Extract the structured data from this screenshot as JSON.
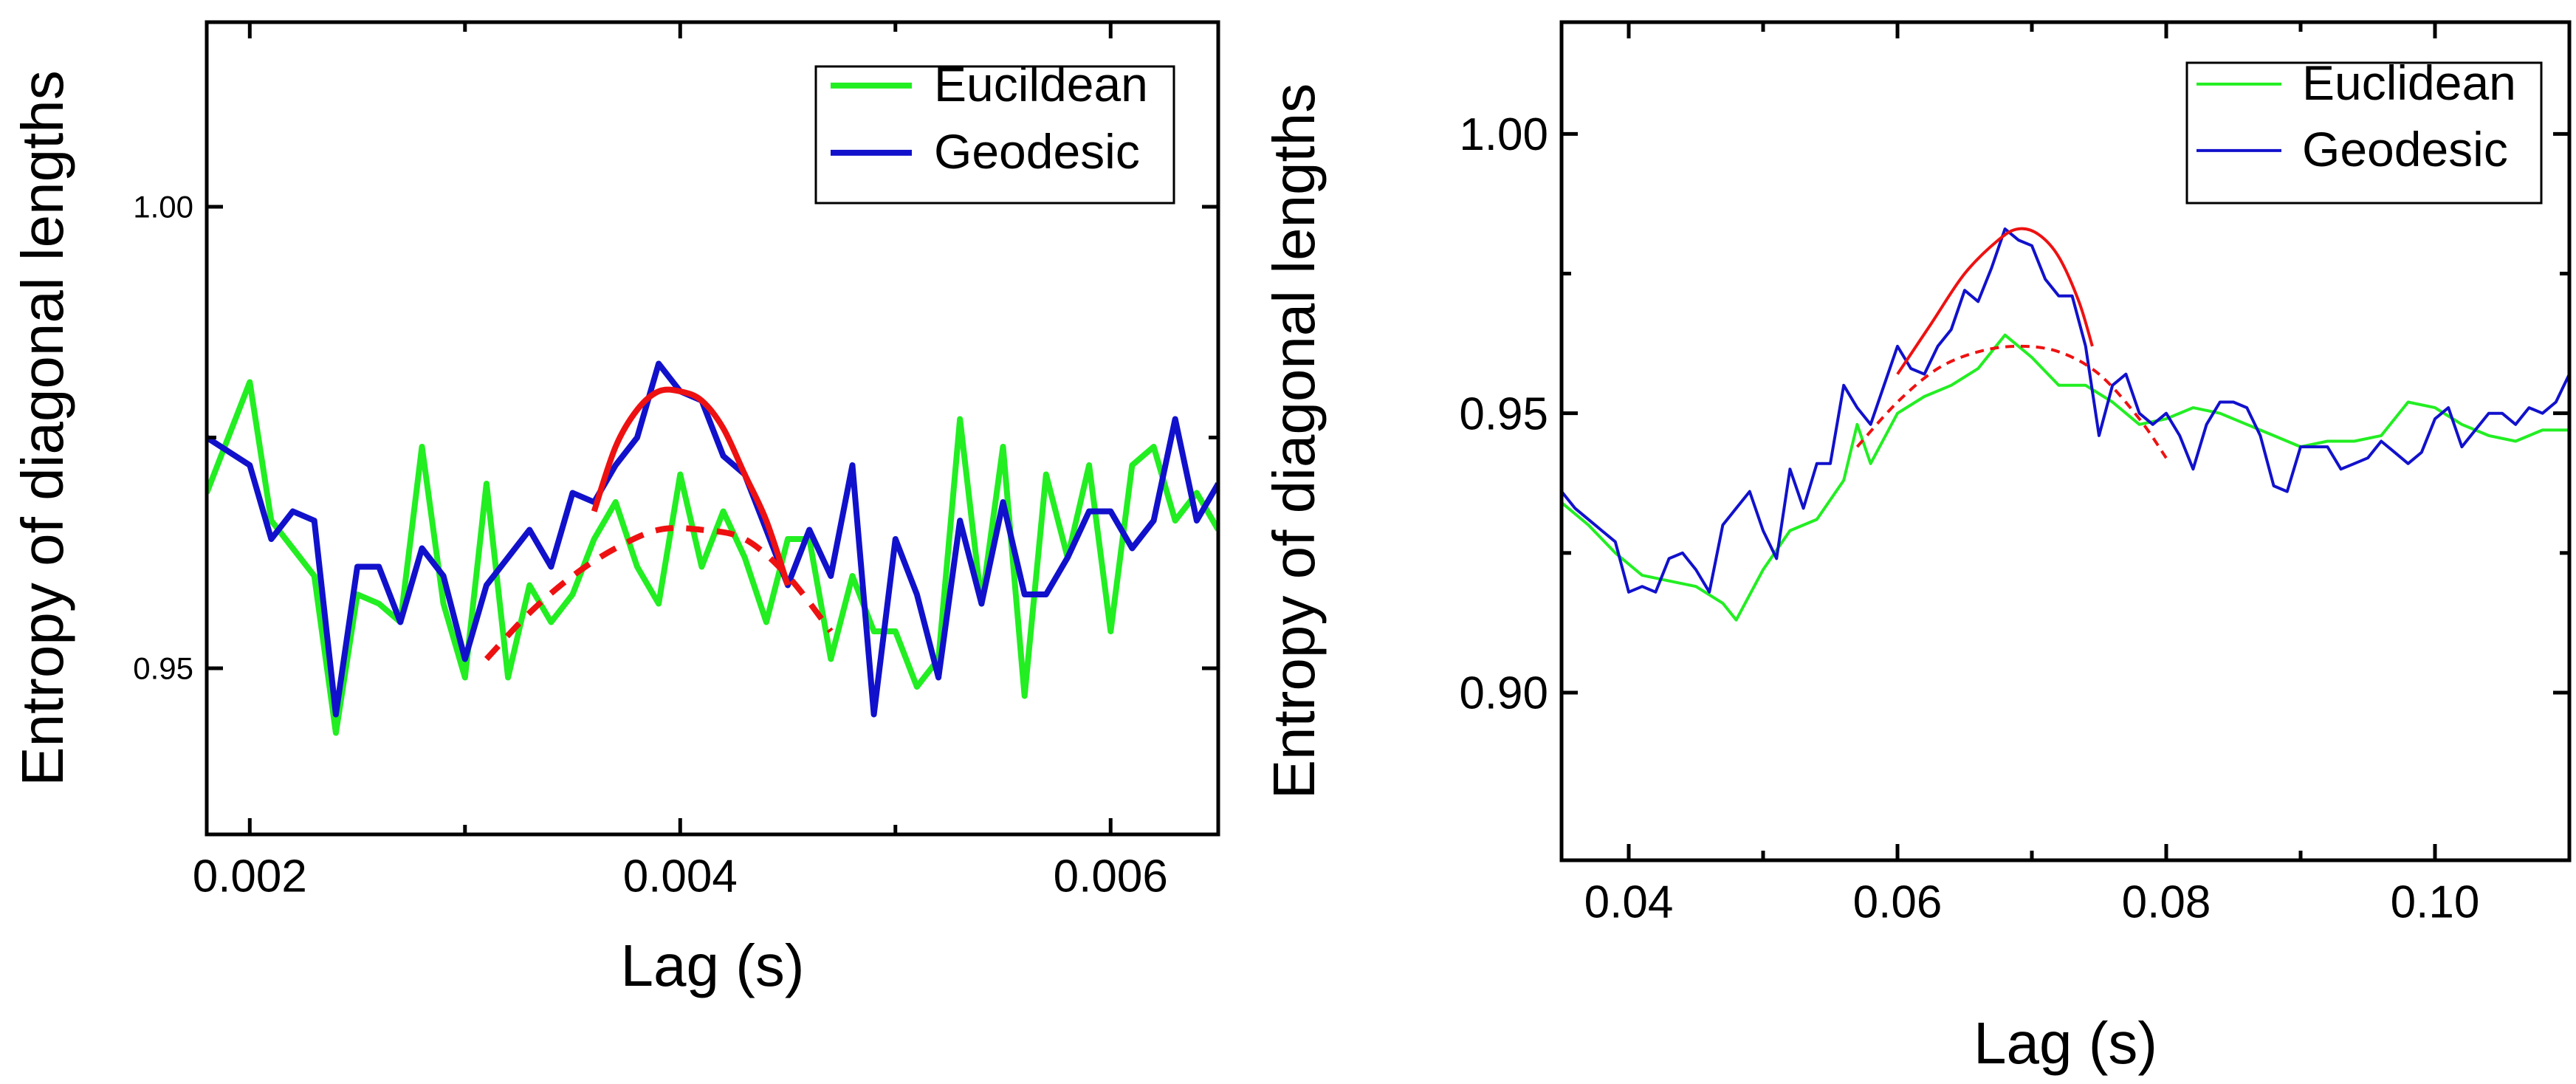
{
  "chart_data": [
    {
      "type": "line",
      "title": "",
      "xlabel": "Lag (s)",
      "ylabel": "Entropy of diagonal lengths",
      "xlim": [
        0.0018,
        0.0065
      ],
      "ylim": [
        0.932,
        1.02
      ],
      "xticks": [
        0.002,
        0.004,
        0.006
      ],
      "xtick_labels": [
        "0.002",
        "0.004",
        "0.006"
      ],
      "xminor": [
        0.003,
        0.005
      ],
      "yticks": [
        0.95,
        1.0
      ],
      "ytick_labels": [
        "0.95",
        "1.00"
      ],
      "grid": false,
      "legend_position": "top-right",
      "series": [
        {
          "name": "Eucildean",
          "color": "#22ee22",
          "x": [
            0.0018,
            0.002,
            0.0021,
            0.0022,
            0.0023,
            0.0024,
            0.0025,
            0.0026,
            0.0027,
            0.0028,
            0.0029,
            0.003,
            0.0031,
            0.0032,
            0.0033,
            0.0034,
            0.0035,
            0.0036,
            0.0037,
            0.0038,
            0.0039,
            0.004,
            0.0041,
            0.0042,
            0.0043,
            0.0044,
            0.0045,
            0.0046,
            0.0047,
            0.0048,
            0.0049,
            0.005,
            0.0051,
            0.0052,
            0.0053,
            0.0054,
            0.0055,
            0.0056,
            0.0057,
            0.0058,
            0.0059,
            0.006,
            0.0061,
            0.0062,
            0.0063,
            0.0064,
            0.0065
          ],
          "values": [
            0.969,
            0.981,
            0.966,
            0.963,
            0.96,
            0.943,
            0.958,
            0.957,
            0.955,
            0.974,
            0.957,
            0.949,
            0.97,
            0.949,
            0.959,
            0.955,
            0.958,
            0.964,
            0.968,
            0.961,
            0.957,
            0.971,
            0.961,
            0.967,
            0.962,
            0.955,
            0.964,
            0.964,
            0.951,
            0.96,
            0.954,
            0.954,
            0.948,
            0.951,
            0.977,
            0.957,
            0.974,
            0.947,
            0.971,
            0.962,
            0.972,
            0.954,
            0.972,
            0.974,
            0.966,
            0.969,
            0.965
          ]
        },
        {
          "name": "Geodesic",
          "color": "#1111cc",
          "x": [
            0.0018,
            0.002,
            0.0021,
            0.0022,
            0.0023,
            0.0024,
            0.0025,
            0.0026,
            0.0027,
            0.0028,
            0.0029,
            0.003,
            0.0031,
            0.0032,
            0.0033,
            0.0034,
            0.0035,
            0.0036,
            0.0037,
            0.0038,
            0.0039,
            0.004,
            0.0041,
            0.0042,
            0.0043,
            0.0044,
            0.0045,
            0.0046,
            0.0047,
            0.0048,
            0.0049,
            0.005,
            0.0051,
            0.0052,
            0.0053,
            0.0054,
            0.0055,
            0.0056,
            0.0057,
            0.0058,
            0.0059,
            0.006,
            0.0061,
            0.0062,
            0.0063,
            0.0064,
            0.0065
          ],
          "values": [
            0.975,
            0.972,
            0.964,
            0.967,
            0.966,
            0.945,
            0.961,
            0.961,
            0.955,
            0.963,
            0.96,
            0.951,
            0.959,
            0.962,
            0.965,
            0.961,
            0.969,
            0.968,
            0.972,
            0.975,
            0.983,
            0.98,
            0.979,
            0.973,
            0.971,
            0.965,
            0.959,
            0.965,
            0.96,
            0.972,
            0.945,
            0.964,
            0.958,
            0.949,
            0.966,
            0.957,
            0.968,
            0.958,
            0.958,
            0.962,
            0.967,
            0.967,
            0.963,
            0.966,
            0.977,
            0.966,
            0.97
          ]
        }
      ],
      "fits": [
        {
          "style": "solid",
          "color": "#ee1111",
          "x": [
            0.0036,
            0.0037,
            0.0038,
            0.0039,
            0.004,
            0.0041,
            0.0042,
            0.0043,
            0.0044,
            0.0045
          ],
          "values": [
            0.967,
            0.974,
            0.978,
            0.98,
            0.98,
            0.979,
            0.976,
            0.971,
            0.966,
            0.959
          ]
        },
        {
          "style": "dashed",
          "color": "#ee1111",
          "x": [
            0.0031,
            0.0033,
            0.0035,
            0.0037,
            0.0039,
            0.0041,
            0.0043,
            0.0045,
            0.0047
          ],
          "values": [
            0.951,
            0.956,
            0.96,
            0.963,
            0.965,
            0.965,
            0.964,
            0.96,
            0.954
          ]
        }
      ]
    },
    {
      "type": "line",
      "title": "",
      "xlabel": "Lag (s)",
      "ylabel": "Entropy of diagonal lengths",
      "xlim": [
        0.035,
        0.11
      ],
      "ylim": [
        0.87,
        1.02
      ],
      "xticks": [
        0.04,
        0.06,
        0.08,
        0.1
      ],
      "xtick_labels": [
        "0.04",
        "0.06",
        "0.08",
        "0.10"
      ],
      "xminor": [
        0.05,
        0.07,
        0.09
      ],
      "yticks": [
        0.9,
        0.95,
        1.0
      ],
      "ytick_labels": [
        "0.90",
        "0.95",
        "1.00"
      ],
      "grid": false,
      "legend_position": "top-right",
      "series": [
        {
          "name": "Euclidean",
          "color": "#22ee22",
          "x": [
            0.035,
            0.037,
            0.039,
            0.041,
            0.043,
            0.045,
            0.047,
            0.048,
            0.05,
            0.052,
            0.054,
            0.056,
            0.057,
            0.058,
            0.06,
            0.062,
            0.064,
            0.066,
            0.067,
            0.068,
            0.07,
            0.072,
            0.074,
            0.076,
            0.078,
            0.08,
            0.082,
            0.084,
            0.086,
            0.088,
            0.09,
            0.092,
            0.094,
            0.096,
            0.098,
            0.1,
            0.102,
            0.104,
            0.106,
            0.108,
            0.11
          ],
          "values": [
            0.934,
            0.93,
            0.925,
            0.921,
            0.92,
            0.919,
            0.916,
            0.913,
            0.922,
            0.929,
            0.931,
            0.938,
            0.948,
            0.941,
            0.95,
            0.953,
            0.955,
            0.958,
            0.961,
            0.964,
            0.96,
            0.955,
            0.955,
            0.952,
            0.948,
            0.949,
            0.951,
            0.95,
            0.948,
            0.946,
            0.944,
            0.945,
            0.945,
            0.946,
            0.952,
            0.951,
            0.948,
            0.946,
            0.945,
            0.947,
            0.947
          ]
        },
        {
          "name": "Geodesic",
          "color": "#1111cc",
          "x": [
            0.035,
            0.036,
            0.037,
            0.038,
            0.039,
            0.04,
            0.041,
            0.042,
            0.043,
            0.044,
            0.045,
            0.046,
            0.047,
            0.048,
            0.049,
            0.05,
            0.051,
            0.052,
            0.053,
            0.054,
            0.055,
            0.056,
            0.057,
            0.058,
            0.059,
            0.06,
            0.061,
            0.062,
            0.063,
            0.064,
            0.065,
            0.066,
            0.067,
            0.068,
            0.069,
            0.07,
            0.071,
            0.072,
            0.073,
            0.074,
            0.075,
            0.076,
            0.077,
            0.078,
            0.079,
            0.08,
            0.081,
            0.082,
            0.083,
            0.084,
            0.085,
            0.086,
            0.087,
            0.088,
            0.089,
            0.09,
            0.091,
            0.092,
            0.093,
            0.094,
            0.095,
            0.096,
            0.097,
            0.098,
            0.099,
            0.1,
            0.101,
            0.102,
            0.103,
            0.104,
            0.105,
            0.106,
            0.107,
            0.108,
            0.109,
            0.11
          ],
          "values": [
            0.936,
            0.933,
            0.931,
            0.929,
            0.927,
            0.918,
            0.919,
            0.918,
            0.924,
            0.925,
            0.922,
            0.918,
            0.93,
            0.933,
            0.936,
            0.929,
            0.924,
            0.94,
            0.933,
            0.941,
            0.941,
            0.955,
            0.951,
            0.948,
            0.955,
            0.962,
            0.958,
            0.957,
            0.962,
            0.965,
            0.972,
            0.97,
            0.976,
            0.983,
            0.981,
            0.98,
            0.974,
            0.971,
            0.971,
            0.962,
            0.946,
            0.955,
            0.957,
            0.95,
            0.948,
            0.95,
            0.946,
            0.94,
            0.948,
            0.952,
            0.952,
            0.951,
            0.946,
            0.937,
            0.936,
            0.944,
            0.944,
            0.944,
            0.94,
            0.941,
            0.942,
            0.945,
            0.943,
            0.941,
            0.943,
            0.949,
            0.951,
            0.944,
            0.947,
            0.95,
            0.95,
            0.948,
            0.951,
            0.95,
            0.952,
            0.957
          ]
        }
      ],
      "fits": [
        {
          "style": "solid",
          "color": "#ee1111",
          "x": [
            0.06,
            0.0625,
            0.065,
            0.0675,
            0.069,
            0.0705,
            0.072,
            0.0735,
            0.0745
          ],
          "values": [
            0.957,
            0.966,
            0.975,
            0.981,
            0.983,
            0.982,
            0.978,
            0.97,
            0.962
          ]
        },
        {
          "style": "dashed",
          "color": "#ee1111",
          "x": [
            0.057,
            0.06,
            0.063,
            0.066,
            0.069,
            0.072,
            0.075,
            0.078,
            0.08
          ],
          "values": [
            0.944,
            0.952,
            0.958,
            0.961,
            0.962,
            0.961,
            0.957,
            0.949,
            0.942
          ]
        }
      ]
    }
  ]
}
